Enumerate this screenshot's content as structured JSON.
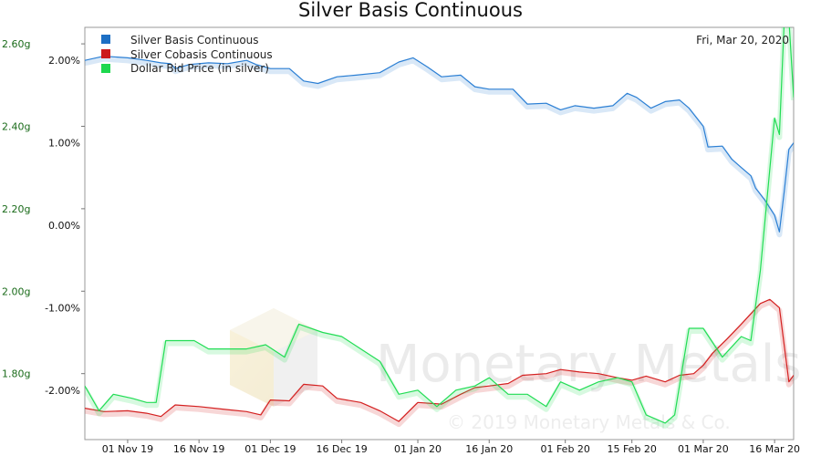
{
  "chart_data": {
    "type": "line",
    "title": "Silver Basis Continuous",
    "date_label": "Fri, Mar 20, 2020",
    "x_ticks": [
      "01 Nov 19",
      "16 Nov 19",
      "01 Dec 19",
      "16 Dec 19",
      "01 Jan 20",
      "16 Jan 20",
      "01 Feb 20",
      "15 Feb 20",
      "01 Mar 20",
      "16 Mar 20"
    ],
    "x_range": [
      "2019-10-23",
      "2020-03-20"
    ],
    "left_axis": {
      "ticks": [
        "2.60g",
        "2.40g",
        "2.20g",
        "2.00g",
        "1.80g"
      ],
      "values": [
        2.6,
        2.4,
        2.2,
        2.0,
        1.8
      ],
      "range": [
        1.64,
        2.64
      ],
      "color": "#1a6b1a"
    },
    "right_axis": {
      "ticks": [
        "2.00%",
        "1.00%",
        "0.00%",
        "-1.00%",
        "-2.00%"
      ],
      "values": [
        2.0,
        1.0,
        0.0,
        -1.0,
        -2.0
      ],
      "range": [
        -2.6,
        2.4
      ]
    },
    "legend_position": "top-left",
    "grid": false,
    "series": [
      {
        "name": "Silver Basis Continuous",
        "axis": "right",
        "color": "#2b7fd4",
        "points": [
          [
            "2019-10-23",
            2.0
          ],
          [
            "2019-10-27",
            2.05
          ],
          [
            "2019-11-01",
            2.03
          ],
          [
            "2019-11-05",
            2.0
          ],
          [
            "2019-11-08",
            1.97
          ],
          [
            "2019-11-10",
            1.96
          ],
          [
            "2019-11-11",
            1.9
          ],
          [
            "2019-11-14",
            1.95
          ],
          [
            "2019-11-18",
            1.97
          ],
          [
            "2019-11-22",
            1.96
          ],
          [
            "2019-11-26",
            2.0
          ],
          [
            "2019-11-28",
            1.95
          ],
          [
            "2019-12-01",
            1.9
          ],
          [
            "2019-12-05",
            1.9
          ],
          [
            "2019-12-08",
            1.75
          ],
          [
            "2019-12-11",
            1.72
          ],
          [
            "2019-12-15",
            1.8
          ],
          [
            "2019-12-19",
            1.82
          ],
          [
            "2019-12-24",
            1.85
          ],
          [
            "2019-12-28",
            1.98
          ],
          [
            "2019-12-31",
            2.03
          ],
          [
            "2020-01-03",
            1.92
          ],
          [
            "2020-01-06",
            1.8
          ],
          [
            "2020-01-10",
            1.82
          ],
          [
            "2020-01-13",
            1.68
          ],
          [
            "2020-01-16",
            1.65
          ],
          [
            "2020-01-21",
            1.65
          ],
          [
            "2020-01-24",
            1.47
          ],
          [
            "2020-01-28",
            1.48
          ],
          [
            "2020-01-31",
            1.4
          ],
          [
            "2020-02-03",
            1.45
          ],
          [
            "2020-02-07",
            1.42
          ],
          [
            "2020-02-11",
            1.45
          ],
          [
            "2020-02-14",
            1.6
          ],
          [
            "2020-02-16",
            1.55
          ],
          [
            "2020-02-19",
            1.42
          ],
          [
            "2020-02-22",
            1.5
          ],
          [
            "2020-02-25",
            1.52
          ],
          [
            "2020-02-27",
            1.42
          ],
          [
            "2020-03-01",
            1.2
          ],
          [
            "2020-03-02",
            0.95
          ],
          [
            "2020-03-05",
            0.96
          ],
          [
            "2020-03-07",
            0.8
          ],
          [
            "2020-03-09",
            0.7
          ],
          [
            "2020-03-11",
            0.6
          ],
          [
            "2020-03-12",
            0.45
          ],
          [
            "2020-03-14",
            0.3
          ],
          [
            "2020-03-16",
            0.12
          ],
          [
            "2020-03-17",
            -0.08
          ],
          [
            "2020-03-18",
            0.4
          ],
          [
            "2020-03-19",
            0.92
          ],
          [
            "2020-03-20",
            1.0
          ]
        ]
      },
      {
        "name": "Silver Cobasis Continuous",
        "axis": "right",
        "color": "#d42020",
        "points": [
          [
            "2019-10-23",
            -2.22
          ],
          [
            "2019-10-27",
            -2.26
          ],
          [
            "2019-11-01",
            -2.25
          ],
          [
            "2019-11-05",
            -2.28
          ],
          [
            "2019-11-08",
            -2.32
          ],
          [
            "2019-11-11",
            -2.18
          ],
          [
            "2019-11-16",
            -2.2
          ],
          [
            "2019-11-21",
            -2.23
          ],
          [
            "2019-11-26",
            -2.26
          ],
          [
            "2019-11-29",
            -2.3
          ],
          [
            "2019-12-01",
            -2.12
          ],
          [
            "2019-12-05",
            -2.13
          ],
          [
            "2019-12-08",
            -1.93
          ],
          [
            "2019-12-12",
            -1.95
          ],
          [
            "2019-12-15",
            -2.1
          ],
          [
            "2019-12-20",
            -2.15
          ],
          [
            "2019-12-24",
            -2.25
          ],
          [
            "2019-12-28",
            -2.38
          ],
          [
            "2020-01-01",
            -2.15
          ],
          [
            "2020-01-06",
            -2.17
          ],
          [
            "2020-01-10",
            -2.05
          ],
          [
            "2020-01-13",
            -1.97
          ],
          [
            "2020-01-16",
            -1.95
          ],
          [
            "2020-01-20",
            -1.92
          ],
          [
            "2020-01-23",
            -1.82
          ],
          [
            "2020-01-28",
            -1.8
          ],
          [
            "2020-01-31",
            -1.75
          ],
          [
            "2020-02-04",
            -1.78
          ],
          [
            "2020-02-08",
            -1.8
          ],
          [
            "2020-02-12",
            -1.85
          ],
          [
            "2020-02-15",
            -1.88
          ],
          [
            "2020-02-18",
            -1.83
          ],
          [
            "2020-02-22",
            -1.9
          ],
          [
            "2020-02-25",
            -1.82
          ],
          [
            "2020-02-28",
            -1.8
          ],
          [
            "2020-03-01",
            -1.7
          ],
          [
            "2020-03-03",
            -1.55
          ],
          [
            "2020-03-06",
            -1.38
          ],
          [
            "2020-03-09",
            -1.2
          ],
          [
            "2020-03-13",
            -0.95
          ],
          [
            "2020-03-15",
            -0.9
          ],
          [
            "2020-03-17",
            -1.0
          ],
          [
            "2020-03-18",
            -1.45
          ],
          [
            "2020-03-19",
            -1.9
          ],
          [
            "2020-03-20",
            -1.82
          ]
        ]
      },
      {
        "name": "Dollar Bid Price (in silver)",
        "axis": "left",
        "color": "#22dd55",
        "points": [
          [
            "2019-10-23",
            1.77
          ],
          [
            "2019-10-26",
            1.71
          ],
          [
            "2019-10-29",
            1.75
          ],
          [
            "2019-11-02",
            1.74
          ],
          [
            "2019-11-05",
            1.73
          ],
          [
            "2019-11-07",
            1.73
          ],
          [
            "2019-11-09",
            1.88
          ],
          [
            "2019-11-15",
            1.88
          ],
          [
            "2019-11-18",
            1.86
          ],
          [
            "2019-11-22",
            1.86
          ],
          [
            "2019-11-26",
            1.86
          ],
          [
            "2019-11-30",
            1.87
          ],
          [
            "2019-12-04",
            1.84
          ],
          [
            "2019-12-07",
            1.92
          ],
          [
            "2019-12-12",
            1.9
          ],
          [
            "2019-12-16",
            1.89
          ],
          [
            "2019-12-20",
            1.86
          ],
          [
            "2019-12-24",
            1.83
          ],
          [
            "2019-12-28",
            1.75
          ],
          [
            "2020-01-01",
            1.76
          ],
          [
            "2020-01-05",
            1.72
          ],
          [
            "2020-01-09",
            1.76
          ],
          [
            "2020-01-13",
            1.77
          ],
          [
            "2020-01-16",
            1.79
          ],
          [
            "2020-01-20",
            1.75
          ],
          [
            "2020-01-24",
            1.75
          ],
          [
            "2020-01-28",
            1.72
          ],
          [
            "2020-01-31",
            1.78
          ],
          [
            "2020-02-04",
            1.76
          ],
          [
            "2020-02-08",
            1.78
          ],
          [
            "2020-02-12",
            1.79
          ],
          [
            "2020-02-15",
            1.78
          ],
          [
            "2020-02-18",
            1.7
          ],
          [
            "2020-02-22",
            1.68
          ],
          [
            "2020-02-24",
            1.7
          ],
          [
            "2020-02-27",
            1.91
          ],
          [
            "2020-03-01",
            1.91
          ],
          [
            "2020-03-05",
            1.84
          ],
          [
            "2020-03-09",
            1.89
          ],
          [
            "2020-03-11",
            1.88
          ],
          [
            "2020-03-13",
            2.05
          ],
          [
            "2020-03-16",
            2.42
          ],
          [
            "2020-03-17",
            2.38
          ],
          [
            "2020-03-18",
            2.65
          ],
          [
            "2020-03-19",
            2.66
          ],
          [
            "2020-03-20",
            2.47
          ]
        ]
      }
    ],
    "watermark": {
      "text": "Monetary Metals",
      "copyright": "© 2019 Monetary Metals & Co."
    }
  }
}
